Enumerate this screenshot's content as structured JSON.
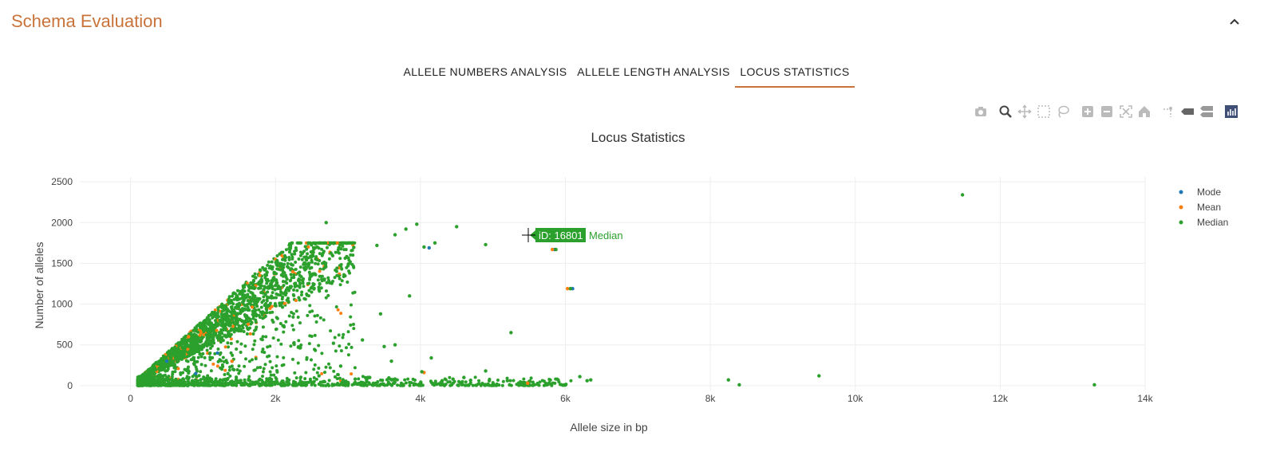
{
  "section": {
    "title": "Schema Evaluation"
  },
  "tabs": [
    {
      "label": "ALLELE NUMBERS ANALYSIS",
      "active": false
    },
    {
      "label": "ALLELE LENGTH ANALYSIS",
      "active": false
    },
    {
      "label": "LOCUS STATISTICS",
      "active": true
    }
  ],
  "modebar": {
    "icons": [
      "camera-icon",
      "zoom-icon",
      "pan-icon",
      "box-select-icon",
      "lasso-icon",
      "zoom-in-icon",
      "zoom-out-icon",
      "autoscale-icon",
      "reset-axes-icon",
      "spike-lines-icon",
      "hover-closest-icon",
      "hover-compare-icon",
      "plotly-logo-icon"
    ]
  },
  "colors": {
    "accent": "#c9733a",
    "mode": "#1f77b4",
    "mean": "#ff7f0e",
    "median": "#2ca02c"
  },
  "chart_data": {
    "type": "scatter",
    "title": "Locus Statistics",
    "xlabel": "Allele size in bp",
    "ylabel": "Number of alleles",
    "xlim": [
      -700,
      14000
    ],
    "ylim": [
      -60,
      2560
    ],
    "x_ticks": [
      0,
      2000,
      4000,
      6000,
      8000,
      10000,
      12000,
      14000
    ],
    "x_tick_labels": [
      "0",
      "2k",
      "4k",
      "6k",
      "8k",
      "10k",
      "12k",
      "14k"
    ],
    "y_ticks": [
      0,
      500,
      1000,
      1500,
      2000,
      2500
    ],
    "y_tick_labels": [
      "0",
      "500",
      "1000",
      "1500",
      "2000",
      "2500"
    ],
    "grid": true,
    "legend_position": "top-right",
    "series": [
      {
        "name": "Mode",
        "color": "#1f77b4",
        "points": [
          [
            6100,
            1190
          ],
          [
            5850,
            1670
          ],
          [
            4120,
            1690
          ],
          [
            500,
            300
          ],
          [
            900,
            150
          ],
          [
            1200,
            400
          ]
        ]
      },
      {
        "name": "Mean",
        "color": "#ff7f0e",
        "points": [
          [
            6030,
            1190
          ],
          [
            5820,
            1670
          ],
          [
            5480,
            30
          ],
          [
            4050,
            160
          ],
          [
            800,
            600
          ],
          [
            1400,
            300
          ]
        ]
      },
      {
        "name": "Median",
        "color": "#2ca02c",
        "points": [
          [
            11480,
            2340
          ],
          [
            2700,
            2000
          ],
          [
            3950,
            1980
          ],
          [
            4500,
            1950
          ],
          [
            3800,
            1920
          ],
          [
            3650,
            1850
          ],
          [
            4900,
            1730
          ],
          [
            4200,
            1750
          ],
          [
            4050,
            1700
          ],
          [
            3400,
            1720
          ],
          [
            5870,
            1670
          ],
          [
            6070,
            1190
          ],
          [
            3450,
            880
          ],
          [
            3850,
            1100
          ],
          [
            5250,
            650
          ],
          [
            3200,
            560
          ],
          [
            2800,
            520
          ],
          [
            3500,
            480
          ],
          [
            3650,
            500
          ],
          [
            4150,
            340
          ],
          [
            3600,
            300
          ],
          [
            2900,
            240
          ],
          [
            4020,
            170
          ],
          [
            4900,
            180
          ],
          [
            4950,
            60
          ],
          [
            5200,
            60
          ],
          [
            5550,
            40
          ],
          [
            6200,
            110
          ],
          [
            6350,
            70
          ],
          [
            6300,
            60
          ],
          [
            5900,
            70
          ],
          [
            8250,
            70
          ],
          [
            8400,
            10
          ],
          [
            9500,
            120
          ],
          [
            13300,
            10
          ],
          [
            4300,
            60
          ],
          [
            4450,
            80
          ],
          [
            4600,
            100
          ],
          [
            3100,
            80
          ],
          [
            3300,
            100
          ],
          [
            2600,
            120
          ]
        ]
      }
    ],
    "tooltip": {
      "label": "iD: 16801",
      "series": "Median"
    }
  }
}
